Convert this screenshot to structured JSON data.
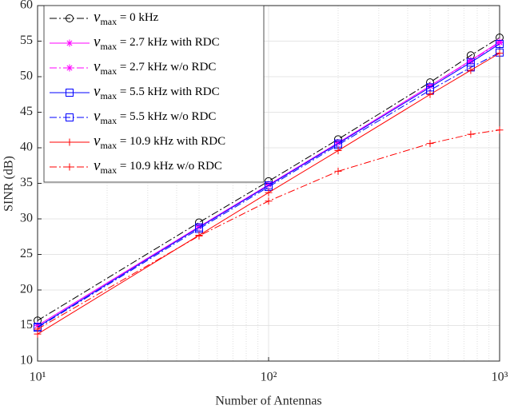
{
  "chart_data": {
    "type": "line",
    "xlabel": "Number of Antennas",
    "ylabel": "SINR (dB)",
    "x": [
      10,
      50,
      100,
      200,
      500,
      750,
      1000
    ],
    "xscale": "log",
    "xlim": [
      10,
      1000
    ],
    "xticks": [
      {
        "value": 10,
        "label": "10¹"
      },
      {
        "value": 100,
        "label": "10²"
      },
      {
        "value": 1000,
        "label": "10³"
      }
    ],
    "ylim": [
      10,
      60
    ],
    "yticks": [
      10,
      15,
      20,
      25,
      30,
      35,
      40,
      45,
      50,
      55,
      60
    ],
    "grid": true,
    "minor_grid": true,
    "legend": "upper left",
    "series": [
      {
        "name": "vmax = 0 kHz",
        "color": "#000000",
        "linestyle": "-.",
        "marker": "o",
        "values": [
          15.7,
          29.5,
          35.3,
          41.2,
          49.2,
          53.0,
          55.5
        ]
      },
      {
        "name": "vmax = 2.7 kHz with RDC",
        "color": "#ff00ff",
        "linestyle": "-",
        "marker": "*",
        "values": [
          15.0,
          28.9,
          34.8,
          40.7,
          48.7,
          52.3,
          54.9
        ]
      },
      {
        "name": "vmax = 2.7 kHz w/o RDC",
        "color": "#ff00ff",
        "linestyle": "-.",
        "marker": "*",
        "values": [
          15.0,
          28.9,
          34.8,
          40.7,
          48.7,
          52.2,
          54.8
        ]
      },
      {
        "name": "vmax = 5.5 kHz with RDC",
        "color": "#0000ff",
        "linestyle": "-",
        "marker": "s",
        "values": [
          14.8,
          28.8,
          34.7,
          40.6,
          48.5,
          52.0,
          54.6
        ]
      },
      {
        "name": "vmax = 5.5 kHz w/o RDC",
        "color": "#0000ff",
        "linestyle": "-.",
        "marker": "s",
        "values": [
          14.7,
          28.6,
          34.5,
          40.4,
          48.1,
          51.3,
          53.4
        ]
      },
      {
        "name": "vmax = 10.9 kHz with RDC",
        "color": "#ff0000",
        "linestyle": "-",
        "marker": "+",
        "values": [
          13.8,
          27.7,
          33.7,
          39.6,
          47.5,
          50.9,
          53.3
        ]
      },
      {
        "name": "vmax = 10.9 kHz w/o RDC",
        "color": "#ff0000",
        "linestyle": "-.",
        "marker": "+",
        "values": [
          14.5,
          27.6,
          32.5,
          36.7,
          40.6,
          41.9,
          42.5
        ]
      }
    ]
  }
}
